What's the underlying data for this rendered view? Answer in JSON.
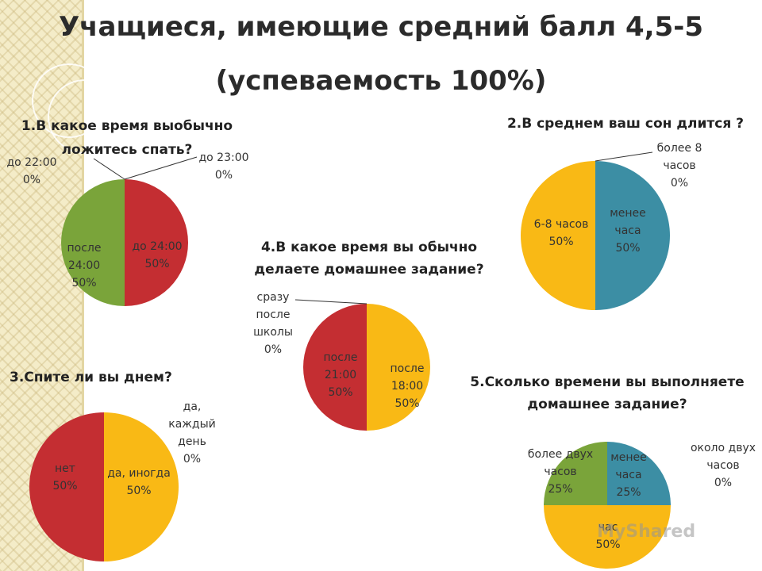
{
  "page": {
    "title_line1": "Учащиеся, имеющие средний балл 4,5-5",
    "title_line2": "(успеваемость 100%)",
    "watermark": "MyShared"
  },
  "colors": {
    "red": "#c42e32",
    "green": "#7aa43a",
    "yellow": "#f9b915",
    "teal": "#3c8ea4"
  },
  "chart_data": [
    {
      "id": "q1",
      "type": "pie",
      "title": "1.В какое время выобычно ложитесь спать?",
      "slices": [
        {
          "label": "до 22:00",
          "value": 0,
          "pct": "0%"
        },
        {
          "label": "до 23:00",
          "value": 0,
          "pct": "0%"
        },
        {
          "label": "до 24:00",
          "value": 50,
          "pct": "50%",
          "color": "#c42e32"
        },
        {
          "label": "после 24:00",
          "value": 50,
          "pct": "50%",
          "color": "#7aa43a"
        }
      ]
    },
    {
      "id": "q2",
      "type": "pie",
      "title": "2.В среднем ваш сон длится ?",
      "slices": [
        {
          "label": "более 8 часов",
          "value": 0,
          "pct": "0%"
        },
        {
          "label": "менее часа",
          "value": 50,
          "pct": "50%",
          "color": "#3c8ea4"
        },
        {
          "label": "6-8 часов",
          "value": 50,
          "pct": "50%",
          "color": "#f9b915"
        }
      ]
    },
    {
      "id": "q3",
      "type": "pie",
      "title": "3.Спите ли вы днем?",
      "slices": [
        {
          "label": "да, каждый день",
          "value": 0,
          "pct": "0%"
        },
        {
          "label": "да, иногда",
          "value": 50,
          "pct": "50%",
          "color": "#f9b915"
        },
        {
          "label": "нет",
          "value": 50,
          "pct": "50%",
          "color": "#c42e32"
        }
      ]
    },
    {
      "id": "q4",
      "type": "pie",
      "title": "4.В какое время вы обычно делаете домашнее задание?",
      "slices": [
        {
          "label": "сразу после школы",
          "value": 0,
          "pct": "0%"
        },
        {
          "label": "после 18:00",
          "value": 50,
          "pct": "50%",
          "color": "#f9b915"
        },
        {
          "label": "после 21:00",
          "value": 50,
          "pct": "50%",
          "color": "#c42e32"
        }
      ]
    },
    {
      "id": "q5",
      "type": "pie",
      "title": "5.Сколько времени вы выполняете домашнее задание?",
      "slices": [
        {
          "label": "около двух часов",
          "value": 0,
          "pct": "0%"
        },
        {
          "label": "менее часа",
          "value": 25,
          "pct": "25%",
          "color": "#3c8ea4"
        },
        {
          "label": "час",
          "value": 50,
          "pct": "50%",
          "color": "#f9b915"
        },
        {
          "label": "более двух часов",
          "value": 25,
          "pct": "25%",
          "color": "#7aa43a"
        }
      ]
    }
  ]
}
